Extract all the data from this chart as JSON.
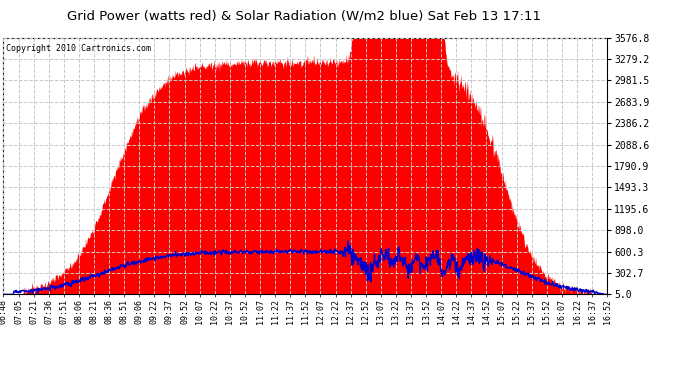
{
  "title": "Grid Power (watts red) & Solar Radiation (W/m2 blue) Sat Feb 13 17:11",
  "copyright": "Copyright 2010 Cartronics.com",
  "yticks": [
    5.0,
    302.7,
    600.3,
    898.0,
    1195.6,
    1493.3,
    1790.9,
    2088.6,
    2386.2,
    2683.9,
    2981.5,
    3279.2,
    3576.8
  ],
  "ymin": 5.0,
  "ymax": 3576.8,
  "bg_color": "#ffffff",
  "plot_bg_color": "#ffffff",
  "grid_color": "#c8c8c8",
  "red_color": "#ff0000",
  "blue_color": "#0000cc",
  "xtick_labels": [
    "06:48",
    "07:05",
    "07:21",
    "07:36",
    "07:51",
    "08:06",
    "08:21",
    "08:36",
    "08:51",
    "09:06",
    "09:22",
    "09:37",
    "09:52",
    "10:07",
    "10:22",
    "10:37",
    "10:52",
    "11:07",
    "11:22",
    "11:37",
    "11:52",
    "12:07",
    "12:22",
    "12:37",
    "12:52",
    "13:07",
    "13:22",
    "13:37",
    "13:52",
    "14:07",
    "14:22",
    "14:37",
    "14:52",
    "15:07",
    "15:22",
    "15:37",
    "15:52",
    "16:07",
    "16:22",
    "16:37",
    "16:52"
  ]
}
